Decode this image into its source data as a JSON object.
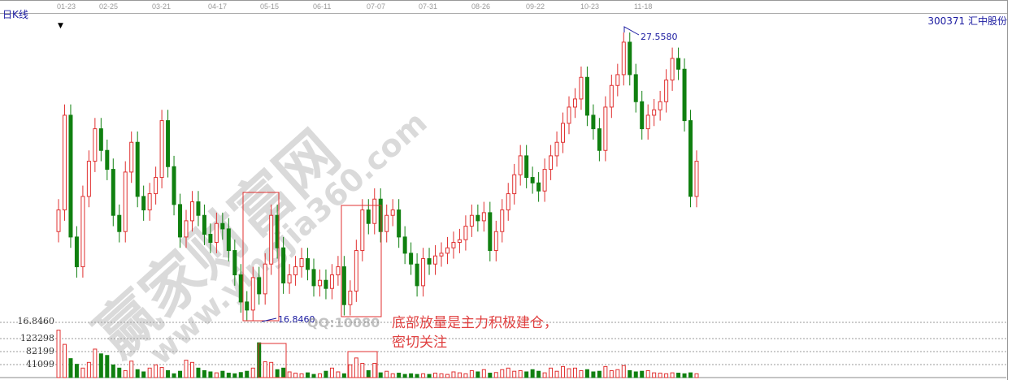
{
  "header": {
    "chart_label": "日K线",
    "stock": "300371  汇中股份"
  },
  "watermark": {
    "site_name": "赢家财富网",
    "url": "www.yingjia360.com",
    "qq": "QQ:10080"
  },
  "annotation": {
    "line1": "底部放量是主力积极建仓，",
    "line2": "密切关注"
  },
  "colors": {
    "up": "#e03030",
    "down": "#108010",
    "label": "#1a1aa0",
    "box": "#e03030"
  },
  "chart_data": {
    "type": "candlestick",
    "x_ticks": [
      "01-23",
      "02-25",
      "03-21",
      "04-17",
      "05-15",
      "06-11",
      "07-07",
      "07-31",
      "08-26",
      "09-22",
      "10-23",
      "11-18"
    ],
    "price_range": [
      16.846,
      27.558
    ],
    "high_label": "27.5580",
    "low_label": "16.8460",
    "price_axis_label": "16.8460",
    "closes": [
      21.0,
      24.5,
      20.0,
      18.9,
      21.5,
      22.8,
      24.0,
      23.2,
      22.5,
      20.8,
      20.2,
      22.4,
      23.5,
      21.5,
      21.0,
      21.6,
      22.2,
      24.3,
      22.6,
      21.2,
      20.0,
      20.6,
      21.3,
      20.8,
      20.1,
      19.8,
      20.5,
      20.3,
      19.5,
      18.6,
      17.6,
      17.3,
      18.5,
      17.9,
      19.0,
      20.8,
      19.6,
      18.3,
      18.6,
      18.9,
      19.2,
      18.8,
      18.2,
      18.4,
      18.1,
      18.6,
      18.9,
      17.5,
      18.0,
      19.5,
      21.0,
      20.5,
      21.4,
      20.2,
      20.8,
      21.0,
      20.0,
      19.4,
      19.0,
      18.2,
      19.2,
      19.0,
      19.3,
      19.4,
      19.6,
      19.8,
      19.9,
      20.4,
      20.8,
      20.6,
      20.9,
      19.5,
      20.2,
      21.0,
      21.6,
      22.3,
      23.0,
      22.2,
      22.0,
      21.7,
      22.5,
      23.0,
      23.5,
      24.2,
      24.8,
      25.1,
      25.9,
      24.5,
      24.0,
      23.2,
      24.8,
      25.6,
      26.0,
      27.2,
      26.0,
      25.0,
      24.0,
      24.5,
      24.7,
      25.0,
      25.8,
      26.6,
      26.2,
      24.3,
      21.5,
      22.8
    ],
    "volume_ticks": [
      41099,
      82199,
      123298
    ],
    "volumes": [
      150000,
      105000,
      60000,
      42000,
      30000,
      48000,
      90000,
      75000,
      70000,
      40000,
      30000,
      22000,
      52000,
      25000,
      18000,
      30000,
      40000,
      32000,
      22000,
      12000,
      20000,
      55000,
      48000,
      30000,
      22000,
      18000,
      15000,
      20000,
      14000,
      12000,
      16000,
      20000,
      30000,
      110000,
      50000,
      48000,
      25000,
      30000,
      18000,
      14000,
      12000,
      15000,
      10000,
      12000,
      20000,
      30000,
      18000,
      12000,
      40000,
      62000,
      45000,
      22000,
      45000,
      15000,
      20000,
      12000,
      14000,
      10000,
      12000,
      10000,
      12000,
      10000,
      14000,
      12000,
      10000,
      18000,
      15000,
      12000,
      22000,
      18000,
      25000,
      14000,
      16000,
      25000,
      30000,
      20000,
      22000,
      18000,
      25000,
      20000,
      15000,
      30000,
      20000,
      35000,
      28000,
      30000,
      22000,
      25000,
      18000,
      20000,
      35000,
      22000,
      25000,
      38000,
      22000,
      18000,
      20000,
      22000,
      15000,
      14000,
      12000,
      15000,
      14000,
      12000,
      15000,
      12000
    ]
  }
}
